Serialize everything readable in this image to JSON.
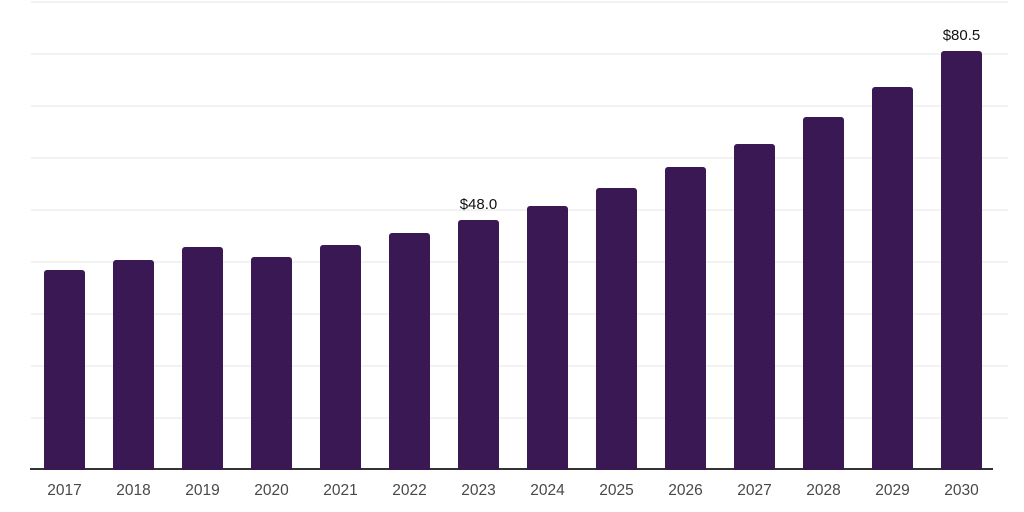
{
  "chart_data": {
    "type": "bar",
    "title": "",
    "xlabel": "",
    "ylabel": "",
    "categories": [
      "2017",
      "2018",
      "2019",
      "2020",
      "2021",
      "2022",
      "2023",
      "2024",
      "2025",
      "2026",
      "2027",
      "2028",
      "2029",
      "2030"
    ],
    "values": [
      38.5,
      40.4,
      42.8,
      40.9,
      43.2,
      45.5,
      48.0,
      50.7,
      54.3,
      58.2,
      62.6,
      67.8,
      73.6,
      80.5
    ],
    "data_labels": [
      {
        "index": 6,
        "text": "$48.0"
      },
      {
        "index": 13,
        "text": "$80.5"
      }
    ],
    "ylim": [
      0,
      90
    ],
    "gridline_values": [
      10,
      20,
      30,
      40,
      50,
      60,
      70,
      80,
      90
    ],
    "grid": "horizontal-only",
    "legend": "none",
    "y_axis_labels_visible": false,
    "colors": {
      "bar": "#3a1854",
      "gridline": "#f2f2f2",
      "axis_line": "#333333",
      "x_label": "#484848",
      "value_label": "#111111",
      "background": "#ffffff"
    }
  }
}
